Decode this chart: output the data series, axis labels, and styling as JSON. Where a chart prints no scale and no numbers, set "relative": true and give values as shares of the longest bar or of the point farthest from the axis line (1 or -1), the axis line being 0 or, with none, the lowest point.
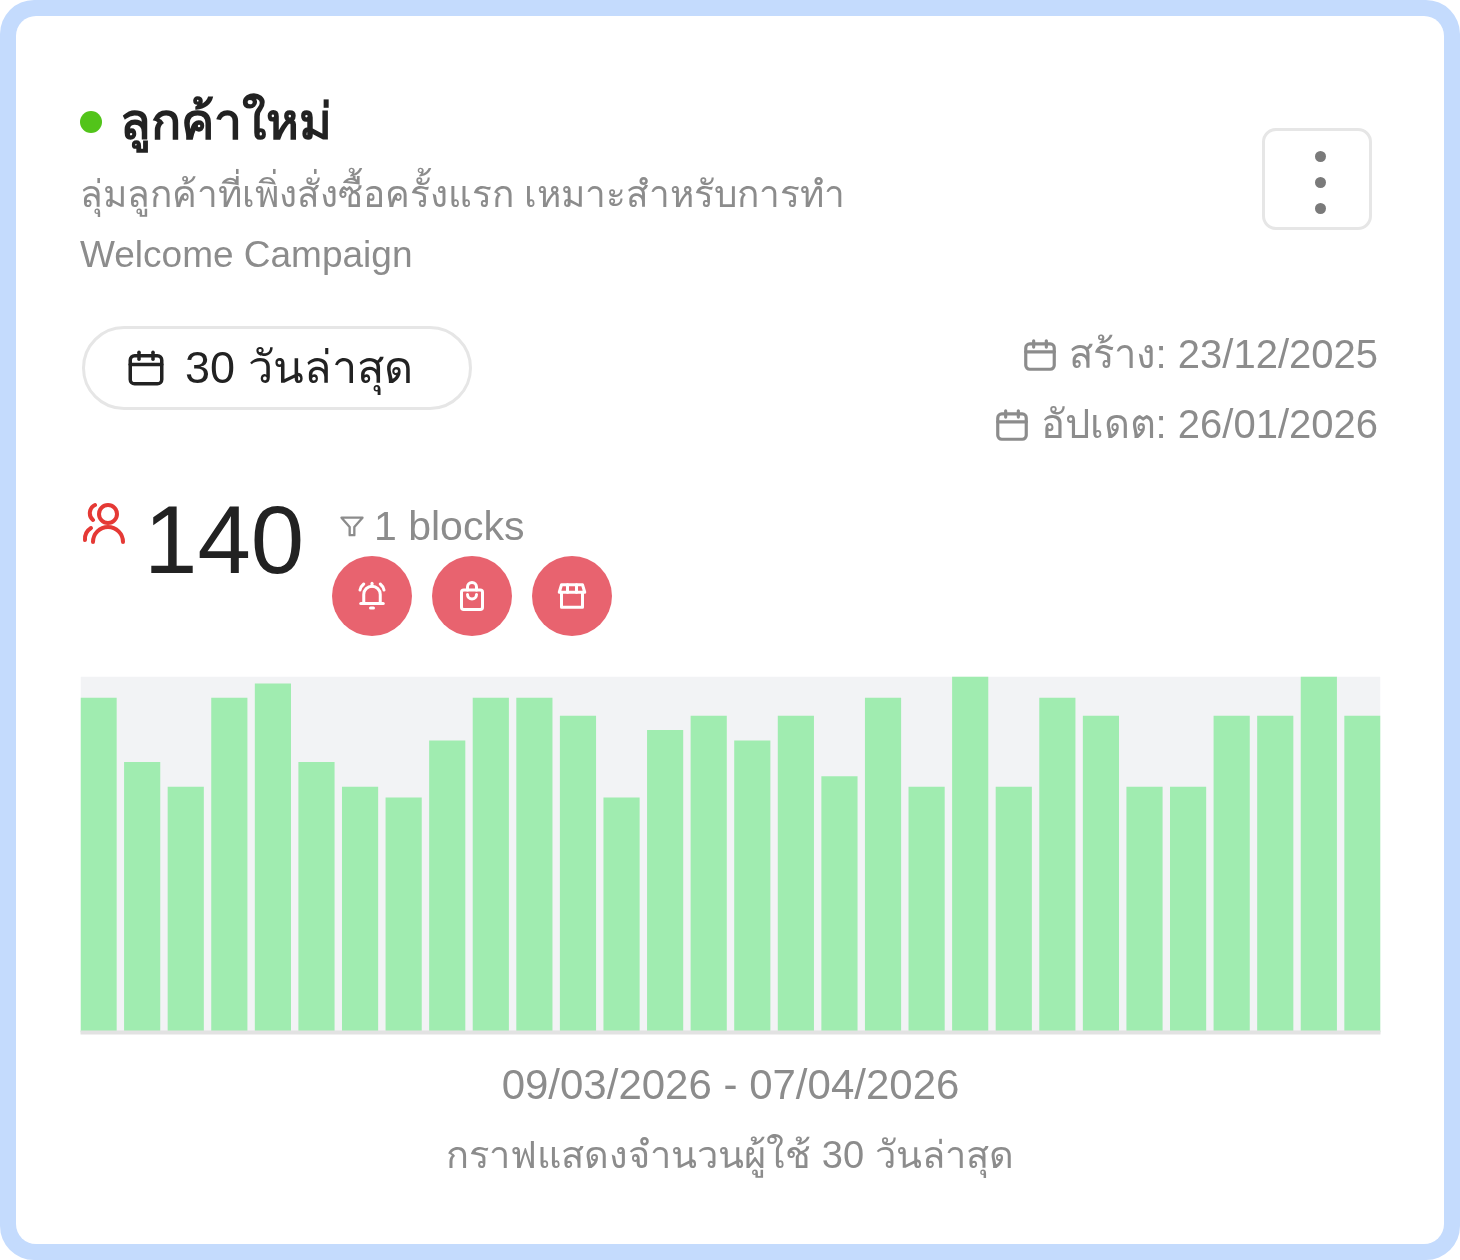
{
  "chart_data": {
    "type": "bar",
    "title": "ลูกค้าใหม่",
    "subtitle": "ลุ่มลูกค้าที่เพิ่งสั่งซื้อครั้งแรก เหมาะสำหรับการทำ\nWelcome Campaign",
    "xlabel": "09/03/2026 - 07/04/2026",
    "annotations": [
      "30 วันล่าสุด",
      "สร้าง: 23/12/2025",
      "อัปเดต: 26/01/2026",
      "140",
      "1 blocks",
      "กราฟแสดงจำนวนผู้ใช้ 30 วันล่าสุด"
    ],
    "categories": [
      null,
      null,
      null,
      null,
      null,
      null,
      null,
      null,
      null,
      null,
      null,
      null,
      null,
      null,
      null,
      null,
      null,
      null,
      null,
      null,
      null,
      null,
      null,
      null,
      null,
      null,
      null,
      null,
      null,
      null
    ],
    "values": [
      0.94,
      0.76,
      0.69,
      0.94,
      0.98,
      0.76,
      0.69,
      0.66,
      0.82,
      0.94,
      0.94,
      0.89,
      0.66,
      0.85,
      0.89,
      0.82,
      0.89,
      0.72,
      0.94,
      0.69,
      1.0,
      0.69,
      0.94,
      0.89,
      0.69,
      0.69,
      0.89,
      0.89,
      1.0,
      0.89
    ],
    "color": "#a0ecb0",
    "relative": true,
    "bands": [
      {
        "axis": "y",
        "from": 0,
        "to": 1,
        "color": "#f2f3f5"
      }
    ]
  }
}
